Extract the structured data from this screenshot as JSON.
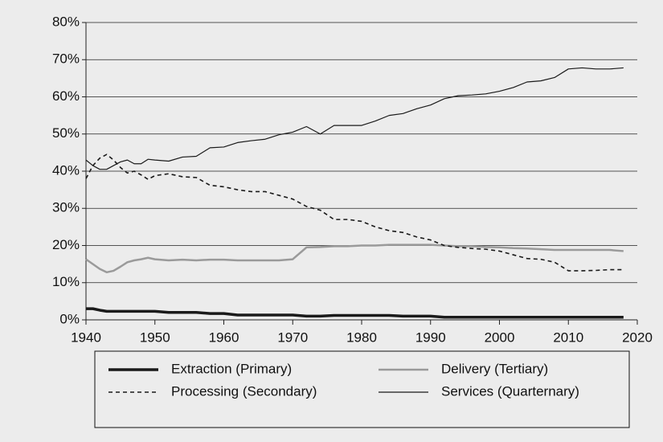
{
  "chart_data": {
    "type": "line",
    "x": [
      1940,
      1941,
      1942,
      1943,
      1944,
      1945,
      1946,
      1947,
      1948,
      1949,
      1950,
      1952,
      1954,
      1956,
      1958,
      1960,
      1962,
      1964,
      1966,
      1968,
      1970,
      1972,
      1974,
      1976,
      1978,
      1980,
      1982,
      1984,
      1986,
      1988,
      1990,
      1992,
      1994,
      1996,
      1998,
      2000,
      2002,
      2004,
      2006,
      2008,
      2010,
      2012,
      2014,
      2016,
      2018
    ],
    "series": [
      {
        "name": "Extraction (Primary)",
        "color": "#1a1a1a",
        "width": 3.5,
        "dashed": false,
        "values": [
          3,
          3,
          2.6,
          2.3,
          2.3,
          2.3,
          2.3,
          2.3,
          2.3,
          2.3,
          2.3,
          2,
          2,
          2,
          1.7,
          1.7,
          1.3,
          1.3,
          1.3,
          1.3,
          1.3,
          1,
          1,
          1.2,
          1.2,
          1.2,
          1.2,
          1.2,
          1,
          1,
          1,
          0.7,
          0.7,
          0.7,
          0.7,
          0.7,
          0.7,
          0.7,
          0.7,
          0.7,
          0.7,
          0.7,
          0.7,
          0.7,
          0.7
        ]
      },
      {
        "name": "Delivery (Tertiary)",
        "color": "#9a9a9a",
        "width": 2.5,
        "dashed": false,
        "values": [
          16.3,
          15,
          13.7,
          12.8,
          13.2,
          14.3,
          15.5,
          16,
          16.3,
          16.7,
          16.3,
          16,
          16.2,
          16,
          16.2,
          16.2,
          16,
          16,
          16,
          16,
          16.3,
          19.5,
          19.6,
          19.8,
          19.8,
          20,
          20,
          20.2,
          20.2,
          20.2,
          20.2,
          20,
          19.8,
          19.8,
          19.6,
          19.5,
          19.3,
          19.2,
          19,
          18.8,
          18.8,
          18.8,
          18.8,
          18.8,
          18.5
        ]
      },
      {
        "name": "Processing (Secondary)",
        "color": "#1a1a1a",
        "width": 1.6,
        "dashed": true,
        "values": [
          38,
          41.5,
          43.5,
          44.5,
          43,
          41,
          39.5,
          40,
          39,
          37.8,
          38.8,
          39.3,
          38.5,
          38.3,
          36.2,
          35.8,
          35,
          34.5,
          34.5,
          33.5,
          32.5,
          30.5,
          29.5,
          27,
          27,
          26.5,
          25,
          24,
          23.5,
          22.3,
          21.5,
          20,
          19.5,
          19.2,
          19,
          18.5,
          17.5,
          16.5,
          16.3,
          15.5,
          13.2,
          13.2,
          13.3,
          13.5,
          13.5
        ]
      },
      {
        "name": "Services (Quarternary)",
        "color": "#1a1a1a",
        "width": 1.2,
        "dashed": false,
        "values": [
          43,
          41.5,
          40.5,
          40.5,
          41.5,
          42.5,
          43,
          42,
          42,
          43.2,
          43,
          42.7,
          43.8,
          44,
          46.3,
          46.5,
          47.7,
          48.2,
          48.6,
          49.8,
          50.5,
          52,
          50,
          52.3,
          52.3,
          52.3,
          53.5,
          55,
          55.5,
          56.8,
          57.8,
          59.5,
          60.3,
          60.5,
          60.8,
          61.5,
          62.5,
          64,
          64.3,
          65.2,
          67.5,
          67.8,
          67.5,
          67.5,
          67.8
        ]
      }
    ],
    "xlim": [
      1940,
      2020
    ],
    "xticks": [
      1940,
      1950,
      1960,
      1970,
      1980,
      1990,
      2000,
      2010,
      2020
    ],
    "ylim": [
      0,
      80
    ],
    "yticks": [
      {
        "value": 0,
        "label": "0%"
      },
      {
        "value": 10,
        "label": "10%"
      },
      {
        "value": 20,
        "label": "20%"
      },
      {
        "value": 30,
        "label": "30%"
      },
      {
        "value": 40,
        "label": "40%"
      },
      {
        "value": 50,
        "label": "50%"
      },
      {
        "value": 60,
        "label": "60%"
      },
      {
        "value": 70,
        "label": "70%"
      },
      {
        "value": 80,
        "label": "80%"
      }
    ],
    "grid": true,
    "legend": "bottom"
  }
}
